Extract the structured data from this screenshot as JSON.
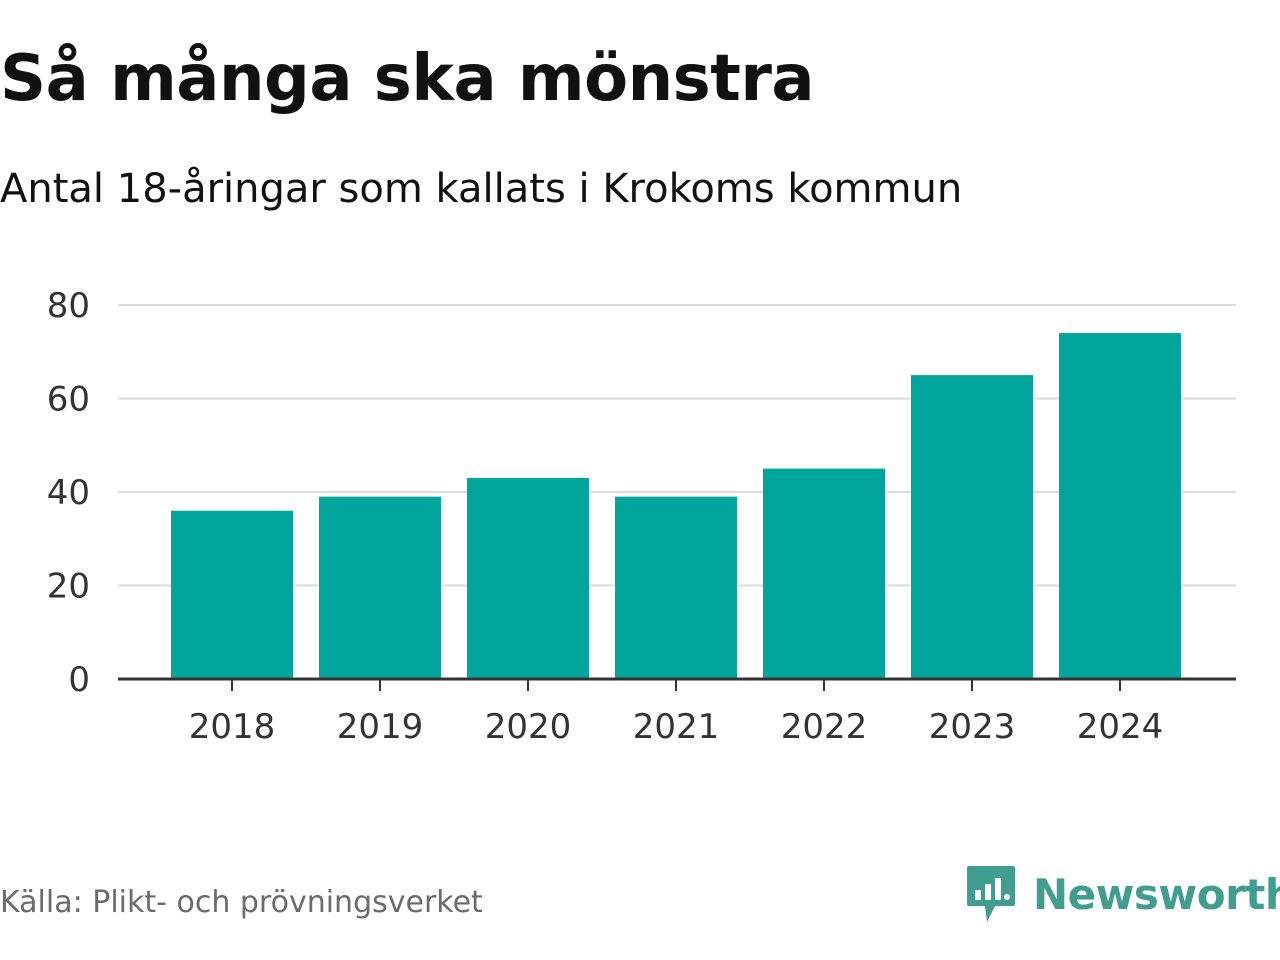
{
  "header": {
    "title": "Så många ska mönstra",
    "subtitle": "Antal 18-åringar som kallats i Krokoms kommun"
  },
  "footer": {
    "source": "Källa: Plikt- och prövningsverket",
    "brand": "Newsworthy"
  },
  "colors": {
    "bar": "#00a59b",
    "grid": "#dcdcdc",
    "axis": "#333333",
    "brand": "#3f9e8f"
  },
  "chart_data": {
    "type": "bar",
    "title": "Så många ska mönstra",
    "subtitle": "Antal 18-åringar som kallats i Krokoms kommun",
    "categories": [
      "2018",
      "2019",
      "2020",
      "2021",
      "2022",
      "2023",
      "2024"
    ],
    "values": [
      36,
      39,
      43,
      39,
      45,
      65,
      74
    ],
    "xlabel": "",
    "ylabel": "",
    "ylim": [
      0,
      80
    ],
    "yticks": [
      0,
      20,
      40,
      60,
      80
    ],
    "grid": true
  }
}
